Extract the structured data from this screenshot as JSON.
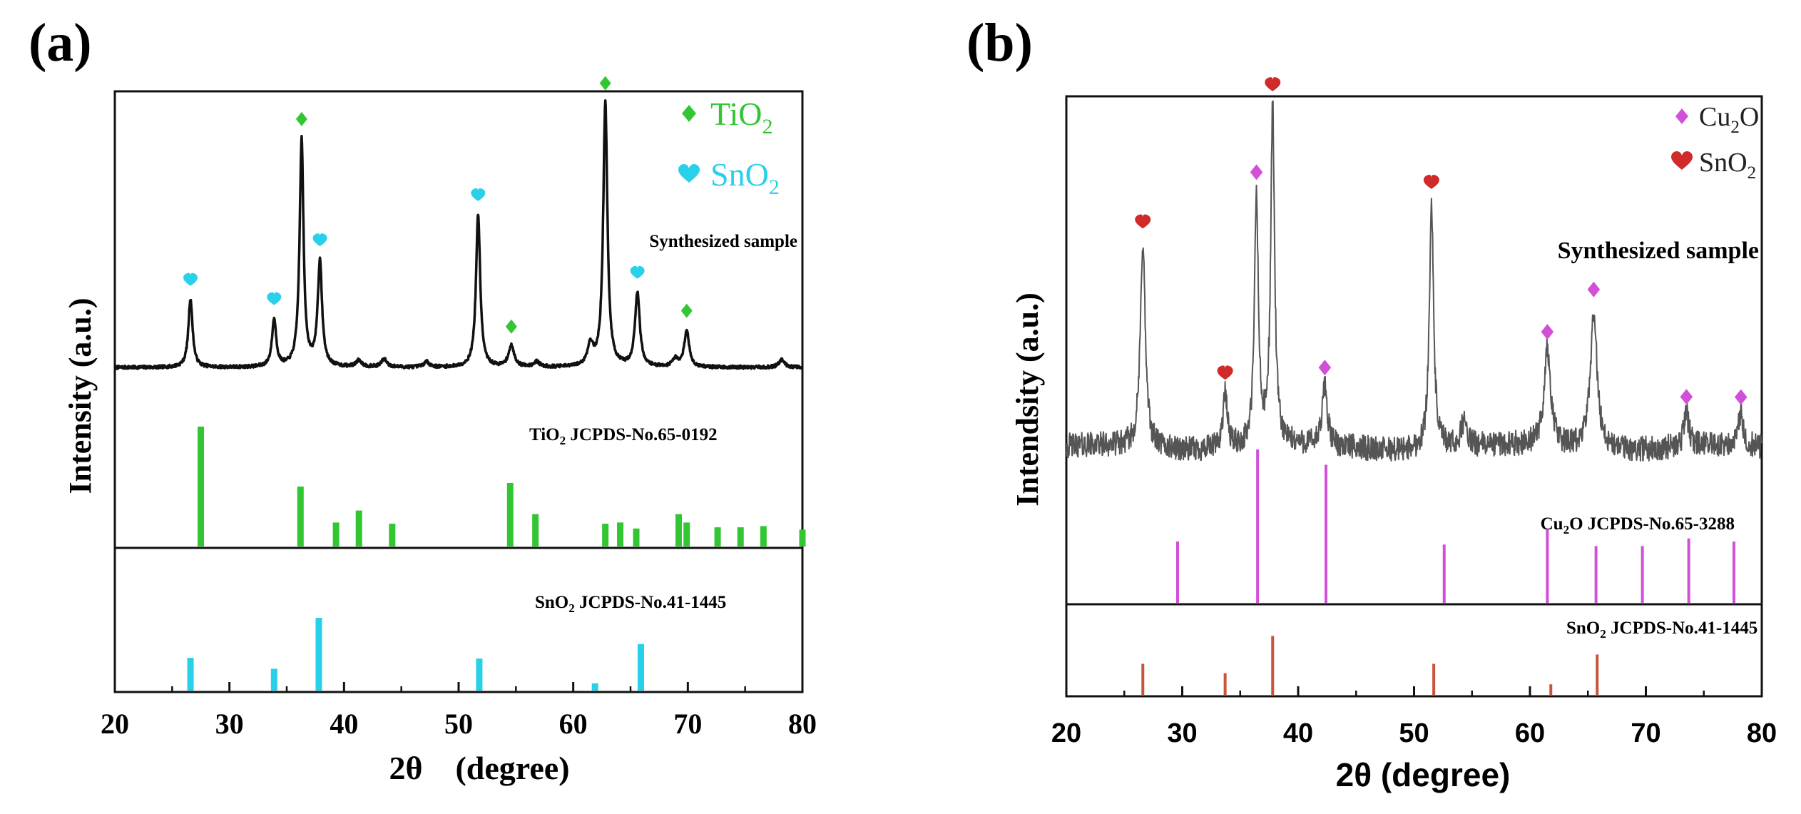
{
  "chart_data": [
    {
      "panel_label": "(a)",
      "type": "line",
      "xlabel": "2θ　(degree)",
      "ylabel": "Intensity (a.u.)",
      "xlim": [
        20,
        80
      ],
      "xticks": [
        20,
        30,
        40,
        50,
        60,
        70,
        80
      ],
      "sample_label": "Synthesized sample",
      "legend": [
        {
          "symbol": "diamond",
          "color": "#33c633",
          "base": "TiO",
          "sub": "2"
        },
        {
          "symbol": "heart",
          "color": "#29d0ea",
          "base": "SnO",
          "sub": "2"
        }
      ],
      "pattern": {
        "baseline": 0.04,
        "noise": 0.006,
        "line_color": "#111111",
        "peaks": [
          {
            "x": 26.6,
            "h": 0.26,
            "w": 0.22
          },
          {
            "x": 33.9,
            "h": 0.18,
            "w": 0.22
          },
          {
            "x": 36.1,
            "h": 0.03,
            "w": 0.3
          },
          {
            "x": 36.3,
            "h": 0.84,
            "w": 0.2
          },
          {
            "x": 37.8,
            "h": 0.04,
            "w": 0.3
          },
          {
            "x": 37.9,
            "h": 0.36,
            "w": 0.22
          },
          {
            "x": 41.3,
            "h": 0.025,
            "w": 0.3
          },
          {
            "x": 43.5,
            "h": 0.03,
            "w": 0.3
          },
          {
            "x": 47.2,
            "h": 0.02,
            "w": 0.3
          },
          {
            "x": 51.7,
            "h": 0.58,
            "w": 0.22
          },
          {
            "x": 54.6,
            "h": 0.08,
            "w": 0.3
          },
          {
            "x": 56.8,
            "h": 0.02,
            "w": 0.3
          },
          {
            "x": 61.5,
            "h": 0.08,
            "w": 0.3
          },
          {
            "x": 62.8,
            "h": 1.0,
            "w": 0.22
          },
          {
            "x": 65.6,
            "h": 0.28,
            "w": 0.25
          },
          {
            "x": 68.9,
            "h": 0.03,
            "w": 0.3
          },
          {
            "x": 69.9,
            "h": 0.14,
            "w": 0.25
          },
          {
            "x": 78.2,
            "h": 0.03,
            "w": 0.3
          }
        ],
        "markers": [
          {
            "x": 26.6,
            "phase": 1
          },
          {
            "x": 33.9,
            "phase": 1
          },
          {
            "x": 36.3,
            "phase": 0
          },
          {
            "x": 37.9,
            "phase": 1
          },
          {
            "x": 51.7,
            "phase": 1
          },
          {
            "x": 54.6,
            "phase": 0
          },
          {
            "x": 62.8,
            "phase": 0
          },
          {
            "x": 65.6,
            "phase": 1
          },
          {
            "x": 69.9,
            "phase": 0
          }
        ]
      },
      "references": [
        {
          "label_base": "TiO",
          "label_sub": "2",
          "label_rest": " JCPDS-No.65-0192",
          "color": "#33c633",
          "sticks": [
            [
              27.5,
              1.0
            ],
            [
              36.2,
              0.5
            ],
            [
              39.3,
              0.2
            ],
            [
              41.3,
              0.3
            ],
            [
              44.2,
              0.19
            ],
            [
              54.5,
              0.53
            ],
            [
              56.7,
              0.27
            ],
            [
              62.8,
              0.19
            ],
            [
              64.1,
              0.2
            ],
            [
              65.5,
              0.15
            ],
            [
              69.2,
              0.27
            ],
            [
              69.9,
              0.2
            ],
            [
              72.6,
              0.16
            ],
            [
              74.6,
              0.16
            ],
            [
              76.6,
              0.17
            ],
            [
              80,
              0.14
            ]
          ]
        },
        {
          "label_base": "SnO",
          "label_sub": "2",
          "label_rest": " JCPDS-No.41-1445",
          "color": "#29d0ea",
          "sticks": [
            [
              26.6,
              0.45
            ],
            [
              33.9,
              0.3
            ],
            [
              37.8,
              1.0
            ],
            [
              51.8,
              0.44
            ],
            [
              61.9,
              0.1
            ],
            [
              65.9,
              0.64
            ]
          ]
        }
      ]
    },
    {
      "panel_label": "(b)",
      "type": "line",
      "xlabel": "2θ (degree)",
      "ylabel": "Intendsity (a.u.)",
      "xlim": [
        20,
        80
      ],
      "xticks": [
        20,
        30,
        40,
        50,
        60,
        70,
        80
      ],
      "sample_label": "Synthesized sample",
      "legend": [
        {
          "symbol": "diamond",
          "color": "#d24fd8",
          "base": "Cu",
          "sub": "2",
          "rest": "O"
        },
        {
          "symbol": "heart",
          "color": "#d12a2a",
          "base": "SnO",
          "sub": "2"
        }
      ],
      "pattern": {
        "baseline": 0.06,
        "noise": 0.035,
        "line_color": "#555555",
        "peaks": [
          {
            "x": 26.6,
            "h": 0.58,
            "w": 0.25
          },
          {
            "x": 33.7,
            "h": 0.15,
            "w": 0.25
          },
          {
            "x": 36.4,
            "h": 0.7,
            "w": 0.2
          },
          {
            "x": 37.8,
            "h": 0.95,
            "w": 0.2
          },
          {
            "x": 42.3,
            "h": 0.17,
            "w": 0.25
          },
          {
            "x": 51.5,
            "h": 0.69,
            "w": 0.22
          },
          {
            "x": 54.3,
            "h": 0.07,
            "w": 0.3
          },
          {
            "x": 61.5,
            "h": 0.27,
            "w": 0.35
          },
          {
            "x": 65.5,
            "h": 0.39,
            "w": 0.35
          },
          {
            "x": 73.5,
            "h": 0.09,
            "w": 0.25
          },
          {
            "x": 78.2,
            "h": 0.09,
            "w": 0.25
          }
        ],
        "markers": [
          {
            "x": 26.6,
            "phase": 1
          },
          {
            "x": 33.7,
            "phase": 1
          },
          {
            "x": 36.4,
            "phase": 0
          },
          {
            "x": 37.8,
            "phase": 1
          },
          {
            "x": 42.3,
            "phase": 0
          },
          {
            "x": 51.5,
            "phase": 1
          },
          {
            "x": 61.5,
            "phase": 0
          },
          {
            "x": 65.5,
            "phase": 0
          },
          {
            "x": 73.5,
            "phase": 0
          },
          {
            "x": 78.2,
            "phase": 0
          }
        ]
      },
      "references": [
        {
          "label_base": "Cu",
          "label_sub": "2",
          "label_rest": "O  JCPDS-No.65-3288",
          "color": "#d24fd8",
          "sticks": [
            [
              29.6,
              0.4
            ],
            [
              36.5,
              1.0
            ],
            [
              42.4,
              0.9
            ],
            [
              52.6,
              0.38
            ],
            [
              61.5,
              0.48
            ],
            [
              65.7,
              0.37
            ],
            [
              69.7,
              0.37
            ],
            [
              73.7,
              0.42
            ],
            [
              77.6,
              0.4
            ]
          ]
        },
        {
          "label_base": "SnO",
          "label_sub": "2",
          "label_rest": "  JCPDS-No.41-1445",
          "color": "#c8553a",
          "sticks": [
            [
              26.6,
              0.5
            ],
            [
              33.7,
              0.35
            ],
            [
              37.8,
              0.95
            ],
            [
              51.7,
              0.5
            ],
            [
              61.8,
              0.17
            ],
            [
              65.8,
              0.65
            ]
          ]
        }
      ]
    }
  ]
}
